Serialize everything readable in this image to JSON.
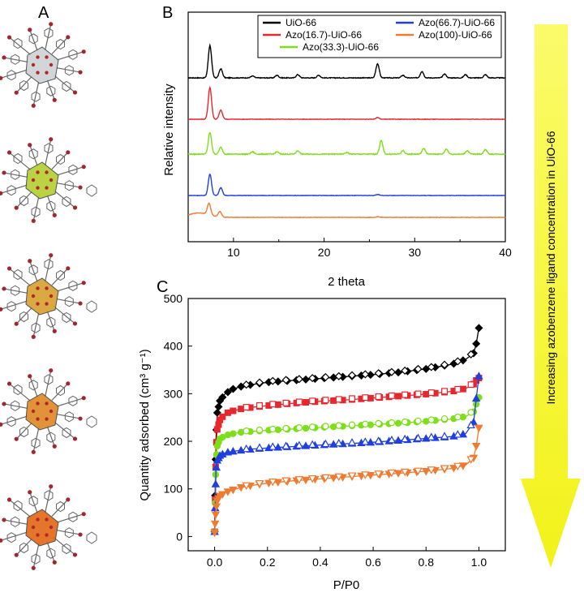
{
  "panels": {
    "a": "A",
    "b": "B",
    "c": "C"
  },
  "arrow": {
    "label": "Increasing azobenzene ligand concentration in UiO-66",
    "color": "#f2f21a"
  },
  "structures": {
    "cluster_colors": [
      "#cfd3d6",
      "#b6cf36",
      "#d9a233",
      "#e08a2a",
      "#e26a18"
    ]
  },
  "chart_data": [
    {
      "type": "line",
      "panel": "B",
      "xlabel": "2 theta",
      "ylabel": "Relative intensity",
      "xlim": [
        5,
        40
      ],
      "xticks": [
        10,
        20,
        30,
        40
      ],
      "xtick_labels": [
        "10",
        "20",
        "30",
        "40"
      ],
      "legend_position": "top",
      "series": [
        {
          "name": "UiO-66",
          "color": "#000000",
          "baseline": 0,
          "noise": 0.06,
          "peaks": [
            [
              7.4,
              2.5
            ],
            [
              8.6,
              0.7
            ],
            [
              12.1,
              0.15
            ],
            [
              14.8,
              0.2
            ],
            [
              17.1,
              0.25
            ],
            [
              19.4,
              0.2
            ],
            [
              25.9,
              1.1
            ],
            [
              28.7,
              0.2
            ],
            [
              30.8,
              0.5
            ],
            [
              33.3,
              0.3
            ],
            [
              35.6,
              0.25
            ],
            [
              37.8,
              0.25
            ]
          ]
        },
        {
          "name": "Azo(16.7)-UiO-66",
          "color": "#e8262d",
          "baseline": 0,
          "noise": 0.04,
          "peaks": [
            [
              7.4,
              2.8
            ],
            [
              8.6,
              0.8
            ],
            [
              25.9,
              0.15
            ]
          ]
        },
        {
          "name": "Azo(33.3)-UiO-66",
          "color": "#7ddf1a",
          "baseline": 0,
          "noise": 0.08,
          "peaks": [
            [
              7.4,
              1.9
            ],
            [
              8.6,
              0.6
            ],
            [
              12.1,
              0.2
            ],
            [
              14.8,
              0.2
            ],
            [
              17.1,
              0.3
            ],
            [
              22.5,
              0.15
            ],
            [
              26.3,
              1.2
            ],
            [
              28.7,
              0.3
            ],
            [
              31.0,
              0.5
            ],
            [
              33.5,
              0.45
            ],
            [
              35.8,
              0.3
            ],
            [
              37.8,
              0.4
            ]
          ]
        },
        {
          "name": "Azo(66.7)-UiO-66",
          "color": "#1f3fe0",
          "baseline": 0,
          "noise": 0.04,
          "peaks": [
            [
              7.4,
              2.2
            ],
            [
              8.6,
              0.8
            ],
            [
              25.9,
              0.1
            ]
          ]
        },
        {
          "name": "Azo(100)-UiO-66",
          "color": "#f07a30",
          "baseline": 0,
          "noise": 0.05,
          "peaks": [
            [
              7.3,
              1.3
            ],
            [
              8.5,
              0.6
            ],
            [
              25.9,
              0.08
            ]
          ]
        }
      ]
    },
    {
      "type": "scatter",
      "panel": "C",
      "xlabel": "P/P0",
      "ylabel": "Quantity adsorbed (cm³ g⁻¹)",
      "xlim": [
        -0.1,
        1.1
      ],
      "ylim": [
        -30,
        500
      ],
      "xticks": [
        0.0,
        0.2,
        0.4,
        0.6,
        0.8,
        1.0
      ],
      "xtick_labels": [
        "0.0",
        "0.2",
        "0.4",
        "0.6",
        "0.8",
        "1.0"
      ],
      "yticks": [
        0,
        100,
        200,
        300,
        400,
        500
      ],
      "ytick_labels": [
        "0",
        "100",
        "200",
        "300",
        "400",
        "500"
      ],
      "series": [
        {
          "color": "#000000",
          "marker": "diamond",
          "points": [
            [
              0.0,
              10
            ],
            [
              0.005,
              200
            ],
            [
              0.01,
              260
            ],
            [
              0.02,
              285
            ],
            [
              0.04,
              300
            ],
            [
              0.07,
              310
            ],
            [
              0.1,
              315
            ],
            [
              0.15,
              320
            ],
            [
              0.2,
              324
            ],
            [
              0.3,
              328
            ],
            [
              0.4,
              332
            ],
            [
              0.5,
              336
            ],
            [
              0.6,
              340
            ],
            [
              0.7,
              345
            ],
            [
              0.8,
              352
            ],
            [
              0.9,
              362
            ],
            [
              0.95,
              372
            ],
            [
              0.98,
              385
            ],
            [
              0.99,
              405
            ],
            [
              1.0,
              438
            ]
          ]
        },
        {
          "color": "#e8262d",
          "marker": "square",
          "points": [
            [
              0.0,
              10
            ],
            [
              0.005,
              180
            ],
            [
              0.01,
              225
            ],
            [
              0.02,
              245
            ],
            [
              0.04,
              258
            ],
            [
              0.07,
              264
            ],
            [
              0.1,
              268
            ],
            [
              0.15,
              272
            ],
            [
              0.2,
              275
            ],
            [
              0.3,
              280
            ],
            [
              0.4,
              284
            ],
            [
              0.5,
              287
            ],
            [
              0.6,
              291
            ],
            [
              0.7,
              295
            ],
            [
              0.8,
              299
            ],
            [
              0.9,
              305
            ],
            [
              0.95,
              311
            ],
            [
              0.98,
              320
            ],
            [
              0.99,
              328
            ],
            [
              1.0,
              333
            ]
          ]
        },
        {
          "color": "#7ddf1a",
          "marker": "circle",
          "points": [
            [
              0.0,
              10
            ],
            [
              0.005,
              160
            ],
            [
              0.01,
              190
            ],
            [
              0.02,
              205
            ],
            [
              0.04,
              212
            ],
            [
              0.07,
              216
            ],
            [
              0.1,
              219
            ],
            [
              0.15,
              221
            ],
            [
              0.2,
              223
            ],
            [
              0.3,
              226
            ],
            [
              0.4,
              229
            ],
            [
              0.5,
              232
            ],
            [
              0.6,
              235
            ],
            [
              0.7,
              238
            ],
            [
              0.8,
              242
            ],
            [
              0.9,
              247
            ],
            [
              0.95,
              252
            ],
            [
              0.98,
              262
            ],
            [
              0.99,
              278
            ],
            [
              1.0,
              292
            ]
          ]
        },
        {
          "color": "#1f3fe0",
          "marker": "triangle-up",
          "points": [
            [
              0.0,
              10
            ],
            [
              0.005,
              135
            ],
            [
              0.01,
              160
            ],
            [
              0.02,
              170
            ],
            [
              0.04,
              176
            ],
            [
              0.07,
              179
            ],
            [
              0.1,
              181
            ],
            [
              0.15,
              184
            ],
            [
              0.2,
              186
            ],
            [
              0.3,
              189
            ],
            [
              0.4,
              192
            ],
            [
              0.5,
              195
            ],
            [
              0.6,
              198
            ],
            [
              0.7,
              202
            ],
            [
              0.8,
              206
            ],
            [
              0.9,
              210
            ],
            [
              0.95,
              216
            ],
            [
              0.98,
              240
            ],
            [
              0.99,
              290
            ],
            [
              1.0,
              337
            ]
          ]
        },
        {
          "color": "#f07a30",
          "marker": "triangle-down",
          "points": [
            [
              0.0,
              8
            ],
            [
              0.005,
              55
            ],
            [
              0.01,
              75
            ],
            [
              0.02,
              85
            ],
            [
              0.04,
              92
            ],
            [
              0.07,
              98
            ],
            [
              0.1,
              103
            ],
            [
              0.15,
              108
            ],
            [
              0.2,
              112
            ],
            [
              0.3,
              117
            ],
            [
              0.4,
              121
            ],
            [
              0.5,
              125
            ],
            [
              0.6,
              129
            ],
            [
              0.7,
              133
            ],
            [
              0.8,
              137
            ],
            [
              0.9,
              143
            ],
            [
              0.95,
              150
            ],
            [
              0.98,
              165
            ],
            [
              0.99,
              190
            ],
            [
              1.0,
              228
            ]
          ]
        }
      ]
    }
  ]
}
